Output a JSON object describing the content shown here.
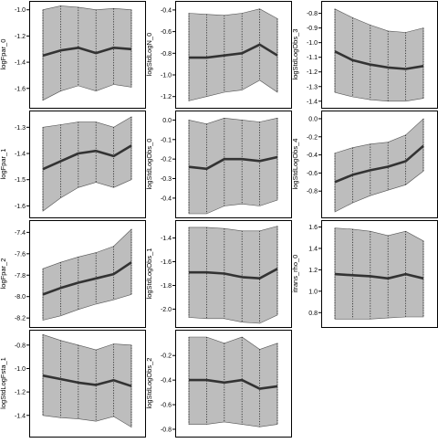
{
  "colors": {
    "band": "#bdbdbd",
    "band_edge": "#555555",
    "median": "#333333",
    "frame": "#000000"
  },
  "chart_data": [
    {
      "type": "area",
      "ylabel": "logFpar_0",
      "yticks": [
        "-1.6",
        "-1.4",
        "-1.2",
        "-1.0"
      ],
      "ylim": [
        -1.72,
        -0.96
      ],
      "x": [
        1,
        2,
        3,
        4,
        5,
        6
      ],
      "median": [
        -1.35,
        -1.31,
        -1.29,
        -1.33,
        -1.29,
        -1.3
      ],
      "upper": [
        -1.0,
        -0.97,
        -0.98,
        -1.0,
        -0.99,
        -1.0
      ],
      "lower": [
        -1.69,
        -1.62,
        -1.58,
        -1.62,
        -1.57,
        -1.59
      ]
    },
    {
      "type": "area",
      "ylabel": "logStdLogN_0",
      "yticks": [
        "-1.2",
        "-1.0",
        "-0.8",
        "-0.6",
        "-0.4"
      ],
      "ylim": [
        -1.27,
        -0.35
      ],
      "x": [
        1,
        2,
        3,
        4,
        5,
        6
      ],
      "median": [
        -0.84,
        -0.84,
        -0.82,
        -0.8,
        -0.72,
        -0.82
      ],
      "upper": [
        -0.43,
        -0.44,
        -0.45,
        -0.43,
        -0.39,
        -0.48
      ],
      "lower": [
        -1.24,
        -1.2,
        -1.16,
        -1.14,
        -1.05,
        -1.16
      ]
    },
    {
      "type": "area",
      "ylabel": "logStdLogObs_3",
      "yticks": [
        "-1.4",
        "-1.3",
        "-1.2",
        "-1.1",
        "-1.0",
        "-0.9",
        "-0.8"
      ],
      "ylim": [
        -1.42,
        -0.74
      ],
      "x": [
        1,
        2,
        3,
        4,
        5,
        6
      ],
      "median": [
        -1.06,
        -1.12,
        -1.15,
        -1.17,
        -1.18,
        -1.16
      ],
      "upper": [
        -0.77,
        -0.83,
        -0.88,
        -0.92,
        -0.93,
        -0.9
      ],
      "lower": [
        -1.34,
        -1.37,
        -1.39,
        -1.4,
        -1.4,
        -1.38
      ]
    },
    {
      "type": "area",
      "ylabel": "logFpar_1",
      "yticks": [
        "-1.6",
        "-1.5",
        "-1.4",
        "-1.3"
      ],
      "ylim": [
        -1.63,
        -1.25
      ],
      "x": [
        1,
        2,
        3,
        4,
        5,
        6
      ],
      "median": [
        -1.46,
        -1.43,
        -1.4,
        -1.39,
        -1.41,
        -1.37
      ],
      "upper": [
        -1.3,
        -1.29,
        -1.28,
        -1.28,
        -1.3,
        -1.26
      ],
      "lower": [
        -1.62,
        -1.57,
        -1.53,
        -1.51,
        -1.53,
        -1.5
      ]
    },
    {
      "type": "area",
      "ylabel": "logStdLogObs_0",
      "yticks": [
        "-0.4",
        "-0.3",
        "-0.2",
        "-0.1",
        "0.0"
      ],
      "ylim": [
        -0.48,
        0.03
      ],
      "x": [
        1,
        2,
        3,
        4,
        5,
        6
      ],
      "median": [
        -0.24,
        -0.25,
        -0.2,
        -0.2,
        -0.21,
        -0.19
      ],
      "upper": [
        0.0,
        -0.02,
        0.01,
        0.0,
        -0.01,
        0.01
      ],
      "lower": [
        -0.48,
        -0.48,
        -0.44,
        -0.43,
        -0.44,
        -0.41
      ]
    },
    {
      "type": "area",
      "ylabel": "logStdLogObs_4",
      "yticks": [
        "-0.8",
        "-0.6",
        "-0.4",
        "-0.2",
        "0.0"
      ],
      "ylim": [
        -1.05,
        0.05
      ],
      "x": [
        1,
        2,
        3,
        4,
        5,
        6
      ],
      "median": [
        -0.7,
        -0.62,
        -0.57,
        -0.53,
        -0.47,
        -0.3
      ],
      "upper": [
        -0.38,
        -0.32,
        -0.28,
        -0.26,
        -0.18,
        0.0
      ],
      "lower": [
        -1.03,
        -0.93,
        -0.85,
        -0.79,
        -0.73,
        -0.58
      ]
    },
    {
      "type": "area",
      "ylabel": "logFpar_2",
      "yticks": [
        "-8.2",
        "-8.0",
        "-7.8",
        "-7.6",
        "-7.4"
      ],
      "ylim": [
        -8.25,
        -7.32
      ],
      "x": [
        1,
        2,
        3,
        4,
        5,
        6
      ],
      "median": [
        -7.98,
        -7.92,
        -7.87,
        -7.83,
        -7.79,
        -7.68
      ],
      "upper": [
        -7.74,
        -7.68,
        -7.63,
        -7.59,
        -7.53,
        -7.37
      ],
      "lower": [
        -8.22,
        -8.18,
        -8.12,
        -8.07,
        -8.03,
        -7.98
      ]
    },
    {
      "type": "area",
      "ylabel": "logStdLogObs_1",
      "yticks": [
        "-2.0",
        "-1.8",
        "-1.6",
        "-1.4"
      ],
      "ylim": [
        -2.12,
        -1.28
      ],
      "x": [
        1,
        2,
        3,
        4,
        5,
        6
      ],
      "median": [
        -1.69,
        -1.69,
        -1.7,
        -1.73,
        -1.74,
        -1.66
      ],
      "upper": [
        -1.31,
        -1.31,
        -1.32,
        -1.34,
        -1.34,
        -1.3
      ],
      "lower": [
        -2.07,
        -2.08,
        -2.08,
        -2.11,
        -2.12,
        -2.05
      ]
    },
    {
      "type": "area",
      "ylabel": "itrans_rho_0",
      "yticks": [
        "0.8",
        "1.0",
        "1.2",
        "1.4",
        "1.6"
      ],
      "ylim": [
        0.7,
        1.63
      ],
      "x": [
        1,
        2,
        3,
        4,
        5,
        6
      ],
      "median": [
        1.16,
        1.15,
        1.14,
        1.12,
        1.16,
        1.12
      ],
      "upper": [
        1.59,
        1.58,
        1.56,
        1.52,
        1.56,
        1.47
      ],
      "lower": [
        0.74,
        0.74,
        0.74,
        0.75,
        0.76,
        0.76
      ]
    },
    {
      "type": "area",
      "ylabel": "logStdLogFsta_1",
      "yticks": [
        "-1.4",
        "-1.2",
        "-1.0",
        "-0.8"
      ],
      "ylim": [
        -1.55,
        -0.7
      ],
      "x": [
        1,
        2,
        3,
        4,
        5,
        6
      ],
      "median": [
        -1.06,
        -1.09,
        -1.12,
        -1.14,
        -1.1,
        -1.15
      ],
      "upper": [
        -0.71,
        -0.76,
        -0.8,
        -0.84,
        -0.79,
        -0.8
      ],
      "lower": [
        -1.4,
        -1.42,
        -1.43,
        -1.45,
        -1.41,
        -1.5
      ]
    },
    {
      "type": "area",
      "ylabel": "logStdLogObs_2",
      "yticks": [
        "-0.8",
        "-0.6",
        "-0.4",
        "-0.2"
      ],
      "ylim": [
        -0.83,
        -0.02
      ],
      "x": [
        1,
        2,
        3,
        4,
        5,
        6
      ],
      "median": [
        -0.4,
        -0.4,
        -0.42,
        -0.4,
        -0.47,
        -0.45
      ],
      "upper": [
        -0.05,
        -0.05,
        -0.1,
        -0.05,
        -0.15,
        -0.1
      ],
      "lower": [
        -0.76,
        -0.76,
        -0.74,
        -0.76,
        -0.78,
        -0.76
      ]
    }
  ]
}
